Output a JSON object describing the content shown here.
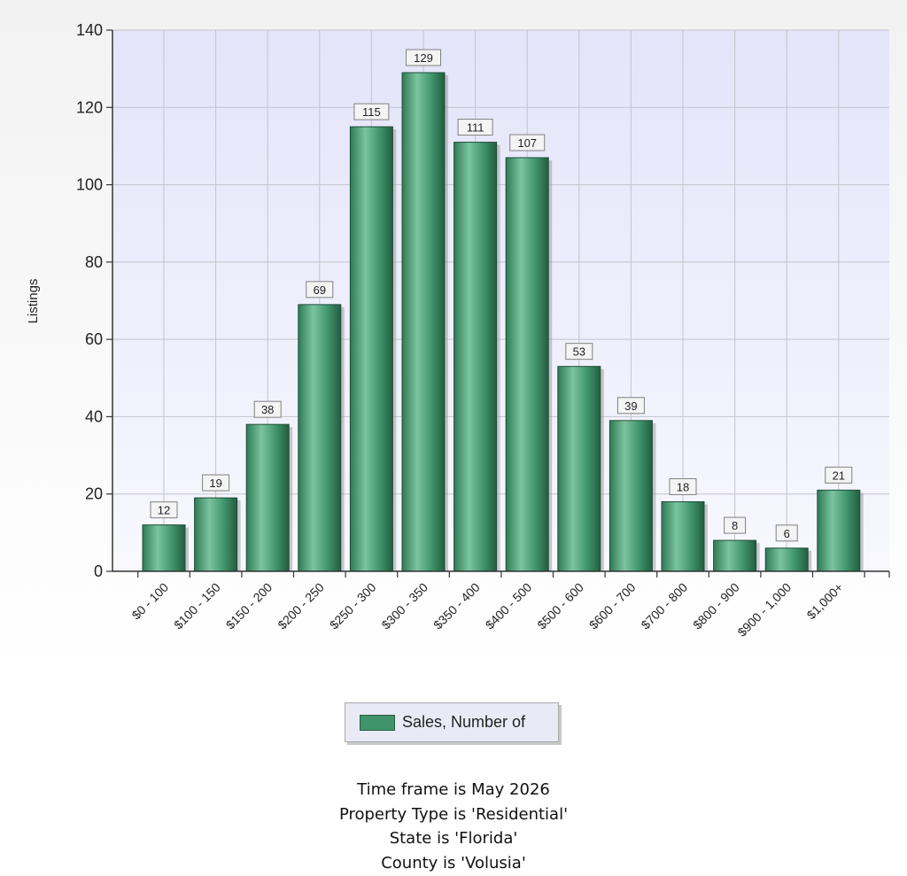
{
  "chart_data": {
    "type": "bar",
    "ylabel": "Listings",
    "xlabel": "",
    "ylim": [
      0,
      140
    ],
    "yticks": [
      0,
      20,
      40,
      60,
      80,
      100,
      120,
      140
    ],
    "grid": true,
    "legend_position": "bottom",
    "categories": [
      "$0 - 100",
      "$100 - 150",
      "$150 - 200",
      "$200 - 250",
      "$250 - 300",
      "$300 - 350",
      "$350 - 400",
      "$400 - 500",
      "$500 - 600",
      "$600 - 700",
      "$700 - 800",
      "$800 - 900",
      "$900 - 1,000",
      "$1,000+"
    ],
    "series": [
      {
        "name": "Sales, Number of",
        "color": "#3f946b",
        "values": [
          12,
          19,
          38,
          69,
          115,
          129,
          111,
          107,
          53,
          39,
          18,
          8,
          6,
          21
        ]
      }
    ]
  },
  "legend": {
    "label": "Sales, Number of"
  },
  "footer": {
    "line1": "Time frame is May 2026",
    "line2": "Property Type is 'Residential'",
    "line3": "State is 'Florida'",
    "line4": "County is 'Volusia'"
  }
}
